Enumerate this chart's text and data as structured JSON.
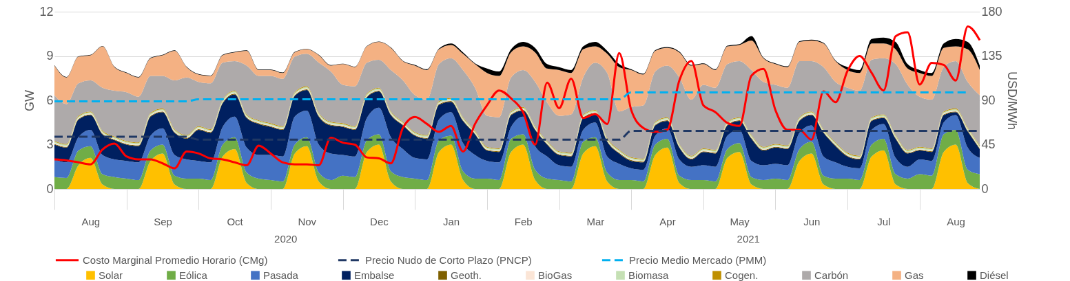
{
  "chart_data": {
    "type": "area",
    "stacked": true,
    "legend": "bottom",
    "grid": "y",
    "ylabel": "GW",
    "y2label": "USD/MWh",
    "categories": [
      null,
      null,
      null,
      "Aug",
      null,
      null,
      null,
      null,
      null,
      "Sep",
      null,
      null,
      null,
      null,
      null,
      "Oct",
      null,
      null,
      null,
      null,
      null,
      "Nov",
      null,
      null,
      null,
      null,
      null,
      "Dec",
      null,
      null,
      null,
      null,
      null,
      "Jan",
      null,
      null,
      null,
      null,
      null,
      "Feb",
      null,
      null,
      null,
      null,
      null,
      "Mar",
      null,
      null,
      null,
      null,
      null,
      "Apr",
      null,
      null,
      null,
      null,
      null,
      "May",
      null,
      null,
      null,
      null,
      null,
      "Jun",
      null,
      null,
      null,
      null,
      null,
      "Jul",
      null,
      null,
      null,
      null,
      null,
      "Aug",
      null,
      null
    ],
    "ylim": [
      0,
      12
    ],
    "yticks": [
      0,
      3,
      6,
      9,
      12
    ],
    "y2lim": [
      0,
      180
    ],
    "y2ticks": [
      0,
      45,
      90,
      135,
      180
    ],
    "annotations": [
      "2020",
      "2021"
    ],
    "series": [
      {
        "name": "Solar",
        "color": "#ffc000",
        "values": [
          0,
          0,
          1.6,
          2.1,
          0.3,
          0,
          0,
          0,
          1.9,
          2.4,
          0.3,
          0,
          0,
          0,
          2.2,
          2.7,
          0.4,
          0,
          0,
          0,
          2.4,
          2.9,
          0.5,
          0,
          0,
          0,
          2.5,
          3.0,
          0.5,
          0,
          0,
          0,
          2.5,
          3.0,
          0.6,
          0,
          0,
          0,
          2.5,
          3.0,
          0.6,
          0,
          0,
          0,
          2.4,
          2.9,
          0.5,
          0,
          0,
          0,
          2.3,
          2.8,
          0.4,
          0,
          0,
          0,
          2.1,
          2.5,
          0.3,
          0,
          0,
          0,
          1.9,
          2.4,
          0.3,
          0,
          0,
          0,
          2.2,
          2.6,
          0.3,
          0,
          0,
          0,
          2.5,
          3.0,
          0.4,
          0
        ]
      },
      {
        "name": "Eólica",
        "color": "#70ad47",
        "values": [
          0.8,
          0.75,
          1.0,
          0.8,
          0.7,
          0.8,
          0.7,
          0.6,
          0.7,
          0.6,
          0.6,
          0.7,
          0.7,
          0.6,
          0.8,
          0.8,
          0.7,
          0.7,
          0.6,
          0.5,
          0.6,
          0.6,
          0.6,
          0.6,
          0.9,
          0.8,
          0.8,
          0.7,
          0.7,
          0.8,
          0.7,
          0.6,
          0.8,
          0.6,
          0.6,
          0.7,
          0.7,
          0.6,
          0.9,
          0.7,
          0.7,
          0.7,
          0.6,
          0.5,
          0.8,
          0.6,
          0.6,
          0.6,
          0.6,
          0.5,
          0.7,
          0.6,
          0.5,
          0.6,
          0.6,
          0.5,
          0.6,
          0.6,
          0.5,
          0.6,
          0.7,
          0.6,
          0.8,
          0.8,
          0.6,
          0.7,
          0.7,
          0.6,
          0.8,
          0.8,
          0.7,
          0.7,
          1.0,
          0.9,
          1.2,
          1.0,
          0.9,
          1.0
        ]
      },
      {
        "name": "Pasada",
        "color": "#4472c4",
        "values": [
          1.2,
          1.05,
          0.9,
          1.1,
          1.3,
          1.2,
          1.2,
          1.2,
          1.0,
          1.1,
          1.4,
          1.3,
          1.2,
          1.2,
          1.2,
          1.4,
          1.7,
          1.6,
          1.7,
          1.7,
          1.9,
          1.8,
          1.9,
          1.8,
          1.4,
          1.4,
          1.5,
          1.8,
          2.3,
          1.9,
          1.4,
          1.4,
          1.4,
          1.6,
          1.9,
          1.6,
          1.2,
          1.2,
          0.8,
          1.2,
          1.6,
          1.5,
          1.0,
          1.0,
          0.8,
          1.0,
          1.1,
          1.1,
          0.8,
          0.8,
          0.6,
          0.7,
          1.1,
          0.9,
          1.0,
          1.0,
          0.9,
          0.9,
          1.1,
          1.0,
          1.0,
          1.0,
          1.1,
          1.1,
          1.3,
          1.1,
          0.8,
          0.8,
          1.0,
          1.0,
          1.1,
          0.8,
          1.0,
          1.0,
          0.8,
          1.0,
          1.5,
          1.1
        ]
      },
      {
        "name": "Embalse",
        "color": "#002060",
        "values": [
          1.0,
          1.0,
          1.2,
          1.0,
          1.4,
          1.3,
          1.1,
          1.1,
          1.3,
          1.1,
          1.5,
          1.4,
          2.1,
          2.0,
          1.6,
          1.5,
          2.0,
          2.1,
          1.9,
          1.8,
          1.4,
          1.4,
          1.9,
          1.9,
          1.9,
          1.8,
          1.4,
          1.1,
          1.5,
          1.6,
          1.5,
          1.4,
          1.0,
          0.7,
          1.5,
          1.4,
          0.7,
          0.7,
          0.8,
          0.4,
          1.1,
          0.8,
          0.7,
          0.7,
          0.8,
          0.6,
          1.0,
          0.7,
          0.5,
          0.5,
          0.7,
          0.5,
          0.8,
          0.5,
          0.9,
          0.9,
          0.7,
          0.6,
          1.5,
          1.0,
          1.1,
          1.1,
          0.8,
          0.7,
          1.6,
          1.1,
          0.7,
          0.6,
          0.6,
          0.4,
          1.3,
          0.9,
          0.6,
          0.6,
          0.5,
          0.2,
          1.1,
          0.6
        ]
      },
      {
        "name": "Geoth.",
        "color": "#7f6000",
        "values": [
          0.05,
          0.05,
          0.05,
          0.05,
          0.05,
          0.05,
          0.05,
          0.05,
          0.05,
          0.05,
          0.05,
          0.05,
          0.05,
          0.05,
          0.05,
          0.05,
          0.05,
          0.05,
          0.05,
          0.05,
          0.05,
          0.05,
          0.05,
          0.05,
          0.05,
          0.05,
          0.05,
          0.05,
          0.05,
          0.05,
          0.05,
          0.05,
          0.05,
          0.05,
          0.05,
          0.05,
          0.05,
          0.05,
          0.05,
          0.05,
          0.05,
          0.05,
          0.05,
          0.05,
          0.05,
          0.05,
          0.05,
          0.05,
          0.05,
          0.05,
          0.05,
          0.05,
          0.05,
          0.05,
          0.05,
          0.05,
          0.05,
          0.05,
          0.05,
          0.05,
          0.05,
          0.05,
          0.05,
          0.05,
          0.05,
          0.05,
          0.05,
          0.05,
          0.05,
          0.05,
          0.05,
          0.05,
          0.05,
          0.05,
          0.05,
          0.05,
          0.05,
          0.05
        ]
      },
      {
        "name": "BioGas",
        "color": "#fbe5d6",
        "values": [
          0.05,
          0.05,
          0.05,
          0.05,
          0.05,
          0.05,
          0.05,
          0.05,
          0.05,
          0.05,
          0.05,
          0.05,
          0.05,
          0.05,
          0.05,
          0.05,
          0.05,
          0.05,
          0.05,
          0.05,
          0.05,
          0.05,
          0.05,
          0.05,
          0.05,
          0.05,
          0.05,
          0.05,
          0.05,
          0.05,
          0.05,
          0.05,
          0.05,
          0.05,
          0.05,
          0.05,
          0.05,
          0.05,
          0.05,
          0.05,
          0.05,
          0.05,
          0.05,
          0.05,
          0.05,
          0.05,
          0.05,
          0.05,
          0.05,
          0.05,
          0.05,
          0.05,
          0.05,
          0.05,
          0.05,
          0.05,
          0.05,
          0.05,
          0.05,
          0.05,
          0.05,
          0.05,
          0.05,
          0.05,
          0.05,
          0.05,
          0.05,
          0.05,
          0.05,
          0.05,
          0.05,
          0.05,
          0.05,
          0.05,
          0.05,
          0.05,
          0.05,
          0.05
        ]
      },
      {
        "name": "Biomasa",
        "color": "#c5e0b4",
        "values": [
          0.1,
          0.1,
          0.1,
          0.1,
          0.1,
          0.1,
          0.1,
          0.1,
          0.1,
          0.1,
          0.1,
          0.1,
          0.1,
          0.1,
          0.1,
          0.1,
          0.1,
          0.1,
          0.1,
          0.1,
          0.1,
          0.1,
          0.1,
          0.1,
          0.1,
          0.1,
          0.1,
          0.1,
          0.1,
          0.1,
          0.1,
          0.1,
          0.1,
          0.1,
          0.1,
          0.1,
          0.1,
          0.1,
          0.1,
          0.1,
          0.1,
          0.1,
          0.1,
          0.1,
          0.1,
          0.1,
          0.1,
          0.1,
          0.1,
          0.1,
          0.1,
          0.1,
          0.1,
          0.1,
          0.1,
          0.1,
          0.1,
          0.1,
          0.1,
          0.1,
          0.1,
          0.1,
          0.1,
          0.1,
          0.1,
          0.1,
          0.1,
          0.1,
          0.1,
          0.1,
          0.1,
          0.1,
          0.1,
          0.1,
          0.1,
          0.1,
          0.1,
          0.1
        ]
      },
      {
        "name": "Cogen.",
        "color": "#bf9000",
        "values": [
          0.05,
          0.05,
          0.05,
          0.05,
          0.05,
          0.05,
          0.05,
          0.05,
          0.05,
          0.05,
          0.05,
          0.05,
          0.05,
          0.05,
          0.05,
          0.05,
          0.05,
          0.05,
          0.05,
          0.05,
          0.05,
          0.05,
          0.05,
          0.05,
          0.05,
          0.05,
          0.05,
          0.05,
          0.05,
          0.05,
          0.05,
          0.05,
          0.05,
          0.05,
          0.05,
          0.05,
          0.05,
          0.05,
          0.05,
          0.05,
          0.05,
          0.05,
          0.05,
          0.05,
          0.05,
          0.05,
          0.05,
          0.05,
          0.05,
          0.05,
          0.05,
          0.05,
          0.05,
          0.05,
          0.05,
          0.05,
          0.05,
          0.05,
          0.05,
          0.05,
          0.05,
          0.05,
          0.05,
          0.05,
          0.05,
          0.05,
          0.05,
          0.05,
          0.05,
          0.05,
          0.05,
          0.05,
          0.05,
          0.05,
          0.05,
          0.05,
          0.05,
          0.05
        ]
      },
      {
        "name": "Carbón",
        "color": "#aeaaaa",
        "values": [
          3.1,
          2.7,
          2.2,
          2.1,
          2.9,
          3.1,
          3.3,
          3.1,
          2.5,
          2.2,
          3.3,
          3.9,
          3.0,
          3.1,
          2.5,
          2.0,
          3.3,
          3.0,
          3.2,
          3.2,
          2.4,
          2.2,
          3.4,
          3.4,
          2.6,
          2.7,
          2.1,
          1.9,
          2.8,
          2.8,
          2.5,
          2.4,
          2.5,
          2.7,
          3.2,
          2.9,
          2.1,
          2.1,
          2.3,
          2.5,
          3.0,
          2.6,
          2.4,
          2.6,
          2.5,
          3.2,
          4.4,
          2.6,
          3.4,
          3.6,
          3.4,
          3.5,
          4.5,
          3.8,
          4.3,
          4.2,
          3.9,
          3.8,
          4.4,
          4.4,
          4.0,
          3.9,
          3.8,
          3.4,
          4.2,
          4.1,
          4.4,
          4.4,
          3.9,
          3.8,
          4.8,
          4.4,
          3.4,
          3.3,
          3.0,
          3.2,
          3.1,
          3.4
        ]
      },
      {
        "name": "Gas",
        "color": "#f4b183",
        "values": [
          2.0,
          1.8,
          1.8,
          1.7,
          2.8,
          1.6,
          1.3,
          1.3,
          1.2,
          1.4,
          2.0,
          0.7,
          0.5,
          0.5,
          0.5,
          0.6,
          1.0,
          0.4,
          0.4,
          0.4,
          0.3,
          0.3,
          0.5,
          0.4,
          1.4,
          1.3,
          1.1,
          1.2,
          1.5,
          1.3,
          2.0,
          2.0,
          1.0,
          0.9,
          1.1,
          1.6,
          2.9,
          2.8,
          1.7,
          1.6,
          2.0,
          2.3,
          3.1,
          2.8,
          1.9,
          1.1,
          1.3,
          3.0,
          2.5,
          2.1,
          1.4,
          1.2,
          1.7,
          2.3,
          1.4,
          1.2,
          1.2,
          1.1,
          2.0,
          1.6,
          1.4,
          1.4,
          1.3,
          1.4,
          1.6,
          1.4,
          1.2,
          1.2,
          1.1,
          1.0,
          1.0,
          1.1,
          1.6,
          1.6,
          1.3,
          1.0,
          2.2,
          1.7
        ]
      },
      {
        "name": "Diésel",
        "color": "#000000",
        "values": [
          0.03,
          0.03,
          0.03,
          0.03,
          0.03,
          0.03,
          0.03,
          0.03,
          0.03,
          0.03,
          0.03,
          0.03,
          0.03,
          0.03,
          0.03,
          0.03,
          0.03,
          0.03,
          0.03,
          0.03,
          0.03,
          0.03,
          0.03,
          0.03,
          0.03,
          0.03,
          0.03,
          0.03,
          0.03,
          0.03,
          0.05,
          0.05,
          0.05,
          0.1,
          0.1,
          0.05,
          0.3,
          0.3,
          0.2,
          0.3,
          0.3,
          0.3,
          0.2,
          0.2,
          0.2,
          0.3,
          0.2,
          0.2,
          0.05,
          0.05,
          0.05,
          0.05,
          0.05,
          0.05,
          0.05,
          0.05,
          0.05,
          0.05,
          0.3,
          0.05,
          0.05,
          0.05,
          0.05,
          0.05,
          0.05,
          0.05,
          0.2,
          0.2,
          0.3,
          0.4,
          0.5,
          0.3,
          0.2,
          0.2,
          0.3,
          0.5,
          0.5,
          0.3
        ]
      },
      {
        "name": "Costo Marginal Promedio Horario (CMg)",
        "type": "line",
        "axis": "y2",
        "color": "#ff0000",
        "line_style": "solid",
        "values": [
          30,
          29,
          27,
          25,
          40,
          46,
          33,
          30,
          30,
          26,
          21,
          38,
          36,
          31,
          30,
          27,
          24,
          44,
          36,
          27,
          25,
          25,
          24,
          52,
          47,
          45,
          32,
          31,
          26,
          62,
          73,
          66,
          58,
          64,
          38,
          66,
          85,
          100,
          92,
          78,
          45,
          108,
          82,
          112,
          72,
          76,
          66,
          138,
          80,
          62,
          58,
          60,
          110,
          130,
          85,
          78,
          67,
          64,
          115,
          122,
          80,
          60,
          60,
          50,
          99,
          88,
          120,
          135,
          118,
          100,
          155,
          159,
          106,
          128,
          126,
          110,
          165,
          151
        ]
      },
      {
        "name": "Precio Nudo de Corto Plazo (PNCP)",
        "type": "line",
        "axis": "y2",
        "color": "#203864",
        "line_style": "dashed",
        "values": [
          53,
          53,
          53,
          53,
          53,
          53,
          53,
          53,
          53,
          53,
          53,
          53,
          50,
          50,
          50,
          50,
          50,
          50,
          50,
          50,
          50,
          50,
          50,
          50,
          50,
          50,
          50,
          50,
          50,
          50,
          50,
          50,
          50,
          50,
          50,
          50,
          50,
          50,
          50,
          50,
          50,
          50,
          50,
          50,
          50,
          50,
          50,
          50,
          59,
          59,
          59,
          59,
          59,
          59,
          59,
          59,
          59,
          59,
          59,
          59,
          59,
          59,
          59,
          59,
          59,
          59,
          59,
          59,
          59,
          59,
          59,
          59,
          59,
          59,
          59,
          59,
          59,
          59
        ]
      },
      {
        "name": "Precio Medio Mercado (PMM)",
        "type": "line",
        "axis": "y2",
        "color": "#00b0f0",
        "line_style": "dashed",
        "values": [
          89,
          89,
          89,
          89,
          89,
          89,
          89,
          89,
          89,
          89,
          89,
          89,
          91,
          91,
          91,
          91,
          91,
          91,
          91,
          91,
          91,
          91,
          91,
          91,
          91,
          91,
          91,
          91,
          91,
          91,
          91,
          91,
          91,
          91,
          91,
          91,
          91,
          91,
          91,
          91,
          91,
          91,
          91,
          91,
          91,
          91,
          91,
          91,
          98,
          98,
          98,
          98,
          98,
          98,
          98,
          98,
          98,
          98,
          98,
          98,
          98,
          98,
          98,
          98,
          98,
          98,
          98,
          98,
          98,
          98,
          98,
          98,
          98,
          98,
          98,
          98,
          98,
          null
        ]
      }
    ]
  }
}
